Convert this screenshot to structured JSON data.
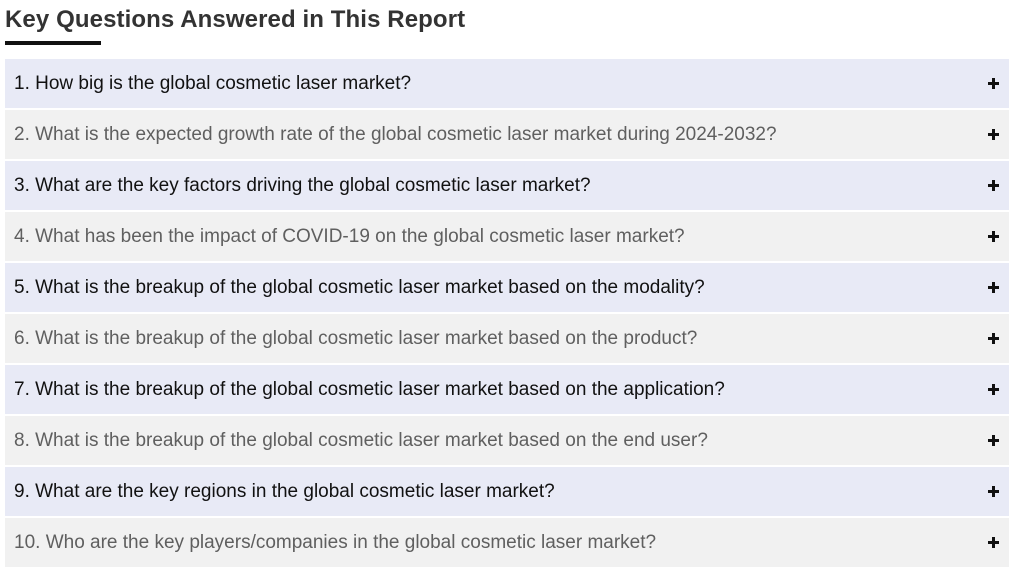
{
  "section": {
    "title": "Key Questions Answered in This Report"
  },
  "icons": {
    "toggle": "plus-icon"
  },
  "colors": {
    "odd_row_bg": "#e8eaf6",
    "even_row_bg": "#f1f1f1",
    "title_text": "#333333",
    "underline": "#111111"
  },
  "faq": [
    {
      "question": "1. How big is the global cosmetic laser market?"
    },
    {
      "question": "2. What is the expected growth rate of the global cosmetic laser market during 2024-2032?"
    },
    {
      "question": "3. What are the key factors driving the global cosmetic laser market?"
    },
    {
      "question": "4. What has been the impact of COVID-19 on the global cosmetic laser market?"
    },
    {
      "question": "5. What is the breakup of the global cosmetic laser market based on the modality?"
    },
    {
      "question": "6. What is the breakup of the global cosmetic laser market based on the product?"
    },
    {
      "question": "7. What is the breakup of the global cosmetic laser market based on the application?"
    },
    {
      "question": "8. What is the breakup of the global cosmetic laser market based on the end user?"
    },
    {
      "question": "9. What are the key regions in the global cosmetic laser market?"
    },
    {
      "question": "10. Who are the key players/companies in the global cosmetic laser market?"
    }
  ]
}
